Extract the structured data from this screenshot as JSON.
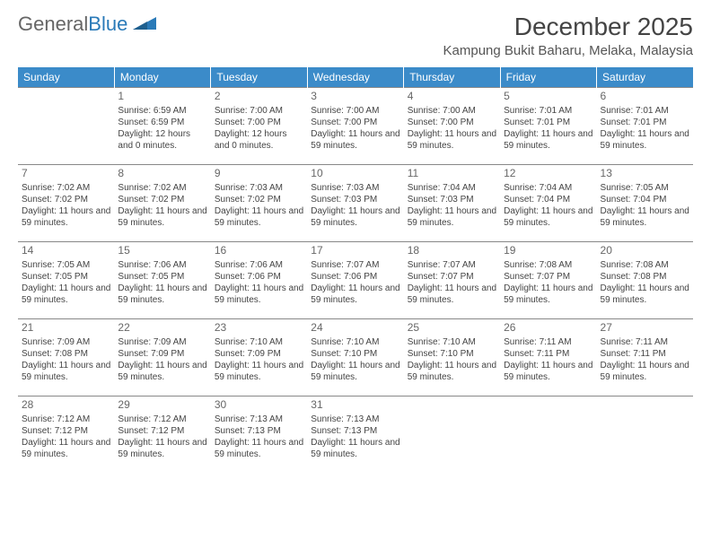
{
  "brand": {
    "general": "General",
    "blue": "Blue"
  },
  "title": "December 2025",
  "location": "Kampung Bukit Baharu, Melaka, Malaysia",
  "colors": {
    "header_bg": "#3b8bc9",
    "header_text": "#ffffff",
    "row_border": "#888888",
    "text": "#444444",
    "brand_gray": "#666666",
    "brand_blue": "#2a7ab8",
    "background": "#ffffff"
  },
  "typography": {
    "title_fontsize": 28,
    "location_fontsize": 15,
    "dow_fontsize": 12,
    "daynum_fontsize": 12,
    "detail_fontsize": 10,
    "logo_fontsize": 22
  },
  "dow": [
    "Sunday",
    "Monday",
    "Tuesday",
    "Wednesday",
    "Thursday",
    "Friday",
    "Saturday"
  ],
  "weeks": [
    [
      null,
      {
        "n": "1",
        "sr": "6:59 AM",
        "ss": "6:59 PM",
        "dl": "12 hours and 0 minutes."
      },
      {
        "n": "2",
        "sr": "7:00 AM",
        "ss": "7:00 PM",
        "dl": "12 hours and 0 minutes."
      },
      {
        "n": "3",
        "sr": "7:00 AM",
        "ss": "7:00 PM",
        "dl": "11 hours and 59 minutes."
      },
      {
        "n": "4",
        "sr": "7:00 AM",
        "ss": "7:00 PM",
        "dl": "11 hours and 59 minutes."
      },
      {
        "n": "5",
        "sr": "7:01 AM",
        "ss": "7:01 PM",
        "dl": "11 hours and 59 minutes."
      },
      {
        "n": "6",
        "sr": "7:01 AM",
        "ss": "7:01 PM",
        "dl": "11 hours and 59 minutes."
      }
    ],
    [
      {
        "n": "7",
        "sr": "7:02 AM",
        "ss": "7:02 PM",
        "dl": "11 hours and 59 minutes."
      },
      {
        "n": "8",
        "sr": "7:02 AM",
        "ss": "7:02 PM",
        "dl": "11 hours and 59 minutes."
      },
      {
        "n": "9",
        "sr": "7:03 AM",
        "ss": "7:02 PM",
        "dl": "11 hours and 59 minutes."
      },
      {
        "n": "10",
        "sr": "7:03 AM",
        "ss": "7:03 PM",
        "dl": "11 hours and 59 minutes."
      },
      {
        "n": "11",
        "sr": "7:04 AM",
        "ss": "7:03 PM",
        "dl": "11 hours and 59 minutes."
      },
      {
        "n": "12",
        "sr": "7:04 AM",
        "ss": "7:04 PM",
        "dl": "11 hours and 59 minutes."
      },
      {
        "n": "13",
        "sr": "7:05 AM",
        "ss": "7:04 PM",
        "dl": "11 hours and 59 minutes."
      }
    ],
    [
      {
        "n": "14",
        "sr": "7:05 AM",
        "ss": "7:05 PM",
        "dl": "11 hours and 59 minutes."
      },
      {
        "n": "15",
        "sr": "7:06 AM",
        "ss": "7:05 PM",
        "dl": "11 hours and 59 minutes."
      },
      {
        "n": "16",
        "sr": "7:06 AM",
        "ss": "7:06 PM",
        "dl": "11 hours and 59 minutes."
      },
      {
        "n": "17",
        "sr": "7:07 AM",
        "ss": "7:06 PM",
        "dl": "11 hours and 59 minutes."
      },
      {
        "n": "18",
        "sr": "7:07 AM",
        "ss": "7:07 PM",
        "dl": "11 hours and 59 minutes."
      },
      {
        "n": "19",
        "sr": "7:08 AM",
        "ss": "7:07 PM",
        "dl": "11 hours and 59 minutes."
      },
      {
        "n": "20",
        "sr": "7:08 AM",
        "ss": "7:08 PM",
        "dl": "11 hours and 59 minutes."
      }
    ],
    [
      {
        "n": "21",
        "sr": "7:09 AM",
        "ss": "7:08 PM",
        "dl": "11 hours and 59 minutes."
      },
      {
        "n": "22",
        "sr": "7:09 AM",
        "ss": "7:09 PM",
        "dl": "11 hours and 59 minutes."
      },
      {
        "n": "23",
        "sr": "7:10 AM",
        "ss": "7:09 PM",
        "dl": "11 hours and 59 minutes."
      },
      {
        "n": "24",
        "sr": "7:10 AM",
        "ss": "7:10 PM",
        "dl": "11 hours and 59 minutes."
      },
      {
        "n": "25",
        "sr": "7:10 AM",
        "ss": "7:10 PM",
        "dl": "11 hours and 59 minutes."
      },
      {
        "n": "26",
        "sr": "7:11 AM",
        "ss": "7:11 PM",
        "dl": "11 hours and 59 minutes."
      },
      {
        "n": "27",
        "sr": "7:11 AM",
        "ss": "7:11 PM",
        "dl": "11 hours and 59 minutes."
      }
    ],
    [
      {
        "n": "28",
        "sr": "7:12 AM",
        "ss": "7:12 PM",
        "dl": "11 hours and 59 minutes."
      },
      {
        "n": "29",
        "sr": "7:12 AM",
        "ss": "7:12 PM",
        "dl": "11 hours and 59 minutes."
      },
      {
        "n": "30",
        "sr": "7:13 AM",
        "ss": "7:13 PM",
        "dl": "11 hours and 59 minutes."
      },
      {
        "n": "31",
        "sr": "7:13 AM",
        "ss": "7:13 PM",
        "dl": "11 hours and 59 minutes."
      },
      null,
      null,
      null
    ]
  ],
  "labels": {
    "sunrise": "Sunrise:",
    "sunset": "Sunset:",
    "daylight": "Daylight:"
  }
}
